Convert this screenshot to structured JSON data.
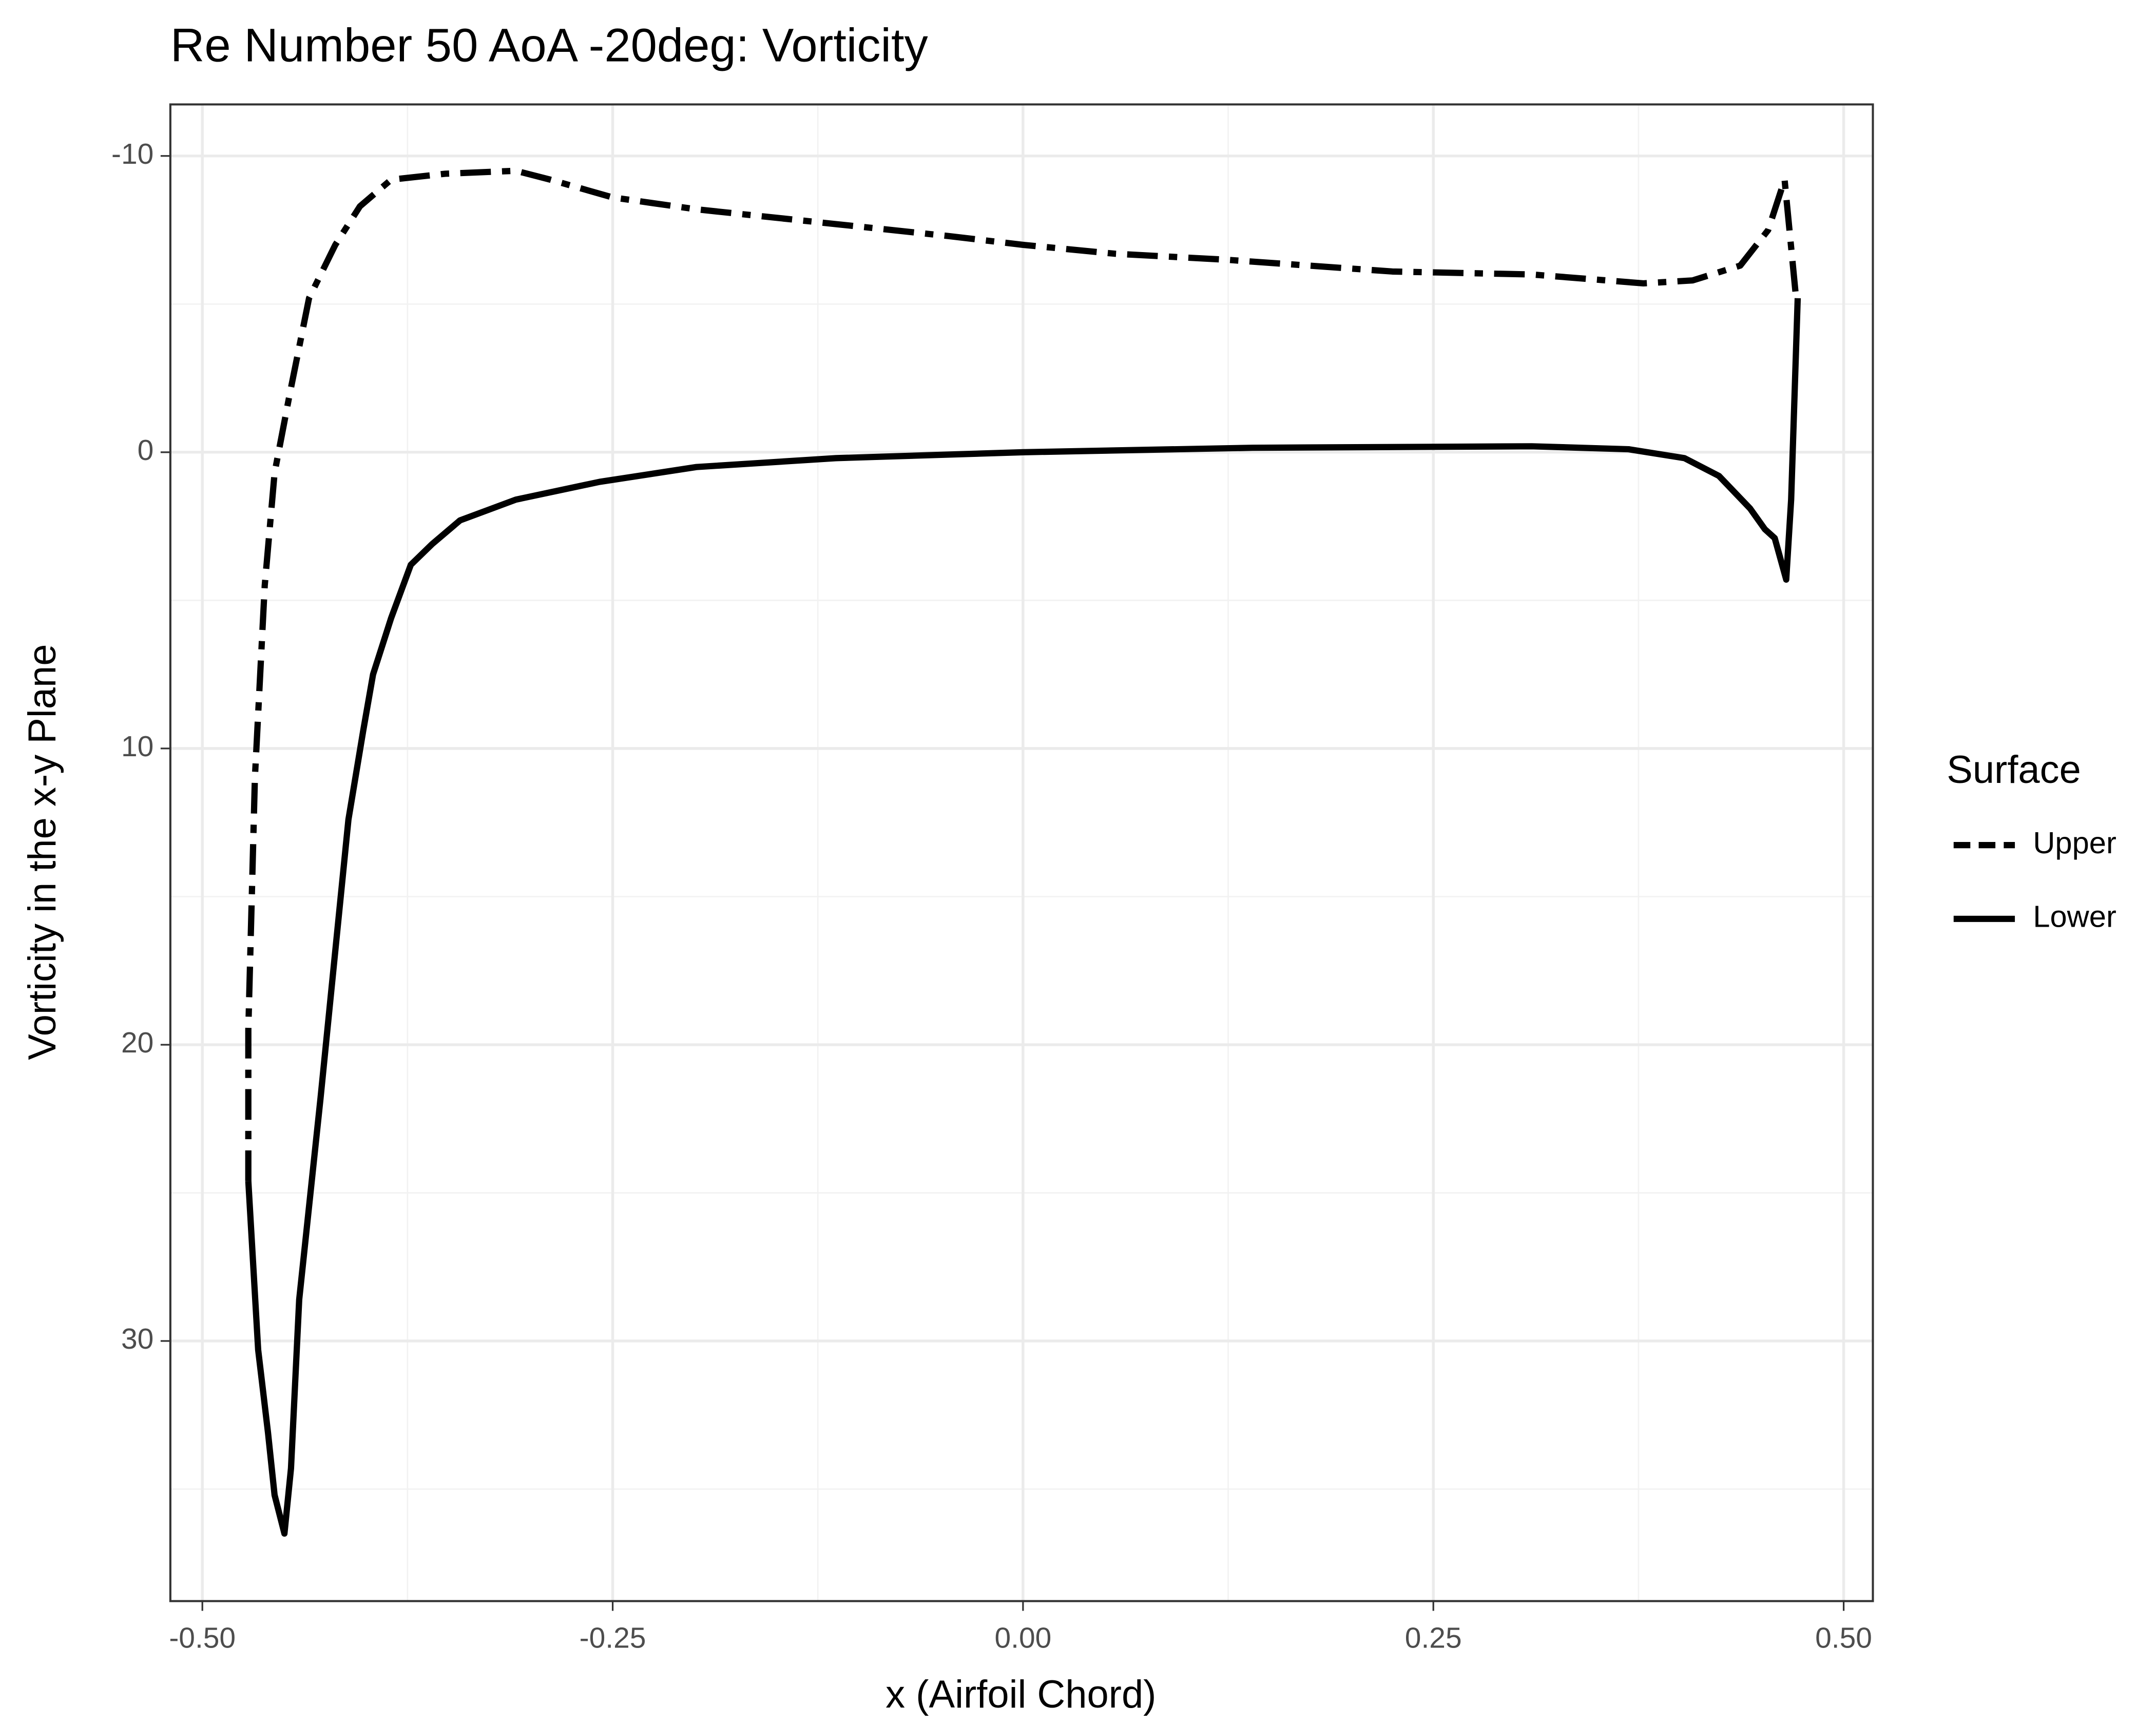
{
  "chart_data": {
    "type": "line",
    "title": "Re Number 50 AoA -20deg: Vorticity",
    "x_label": "x (Airfoil Chord)",
    "y_label": "Vorticity in the x-y Plane",
    "legend_title": "Surface",
    "legend_position": "right",
    "grid": true,
    "reverse_y": true,
    "xlim": [
      -0.5195,
      0.5178
    ],
    "ylim": [
      -11.74,
      38.78
    ],
    "xticks": [
      {
        "value": -0.5,
        "label": "-0.50"
      },
      {
        "value": -0.25,
        "label": "-0.25"
      },
      {
        "value": 0,
        "label": "0.00"
      },
      {
        "value": 0.25,
        "label": "0.25"
      },
      {
        "value": 0.5,
        "label": "0.50"
      }
    ],
    "yticks": [
      -10,
      0,
      10,
      20,
      30
    ],
    "xminor": [
      -0.375,
      -0.125,
      0.125,
      0.375
    ],
    "yminor": [
      -5,
      5,
      15,
      25,
      35
    ],
    "series": [
      {
        "name": "Upper",
        "color": "#000000",
        "dash": "22 8 6 8",
        "x": [
          -0.472,
          -0.472,
          -0.468,
          -0.462,
          -0.456,
          -0.447,
          -0.435,
          -0.419,
          -0.404,
          -0.385,
          -0.352,
          -0.309,
          -0.288,
          -0.25,
          -0.199,
          -0.114,
          -0.046,
          0.0,
          0.056,
          0.123,
          0.225,
          0.31,
          0.378,
          0.408,
          0.437,
          0.454,
          0.464,
          0.471
        ],
        "values": [
          24.6,
          19.5,
          11.0,
          4.5,
          0.7,
          -1.9,
          -5.2,
          -7.0,
          -8.3,
          -9.2,
          -9.4,
          -9.5,
          -9.2,
          -8.6,
          -8.2,
          -7.7,
          -7.3,
          -7.0,
          -6.7,
          -6.5,
          -6.1,
          -6.0,
          -5.7,
          -5.8,
          -6.3,
          -7.5,
          -9.2,
          -5.2
        ]
      },
      {
        "name": "Lower",
        "color": "#000000",
        "dash": "none",
        "x": [
          -0.472,
          -0.466,
          -0.46,
          -0.456,
          -0.45,
          -0.446,
          -0.441,
          -0.428,
          -0.411,
          -0.402,
          -0.396,
          -0.385,
          -0.373,
          -0.36,
          -0.343,
          -0.309,
          -0.258,
          -0.199,
          -0.114,
          0.0,
          0.14,
          0.31,
          0.369,
          0.403,
          0.424,
          0.443,
          0.452,
          0.458,
          0.465,
          0.468,
          0.472
        ],
        "values": [
          24.6,
          30.3,
          33.1,
          35.2,
          36.5,
          34.3,
          28.6,
          21.8,
          12.4,
          9.4,
          7.5,
          5.6,
          3.8,
          3.1,
          2.3,
          1.6,
          1.0,
          0.5,
          0.2,
          0.0,
          -0.15,
          -0.2,
          -0.1,
          0.2,
          0.8,
          1.9,
          2.6,
          2.9,
          4.3,
          1.6,
          -5.2
        ]
      }
    ]
  }
}
